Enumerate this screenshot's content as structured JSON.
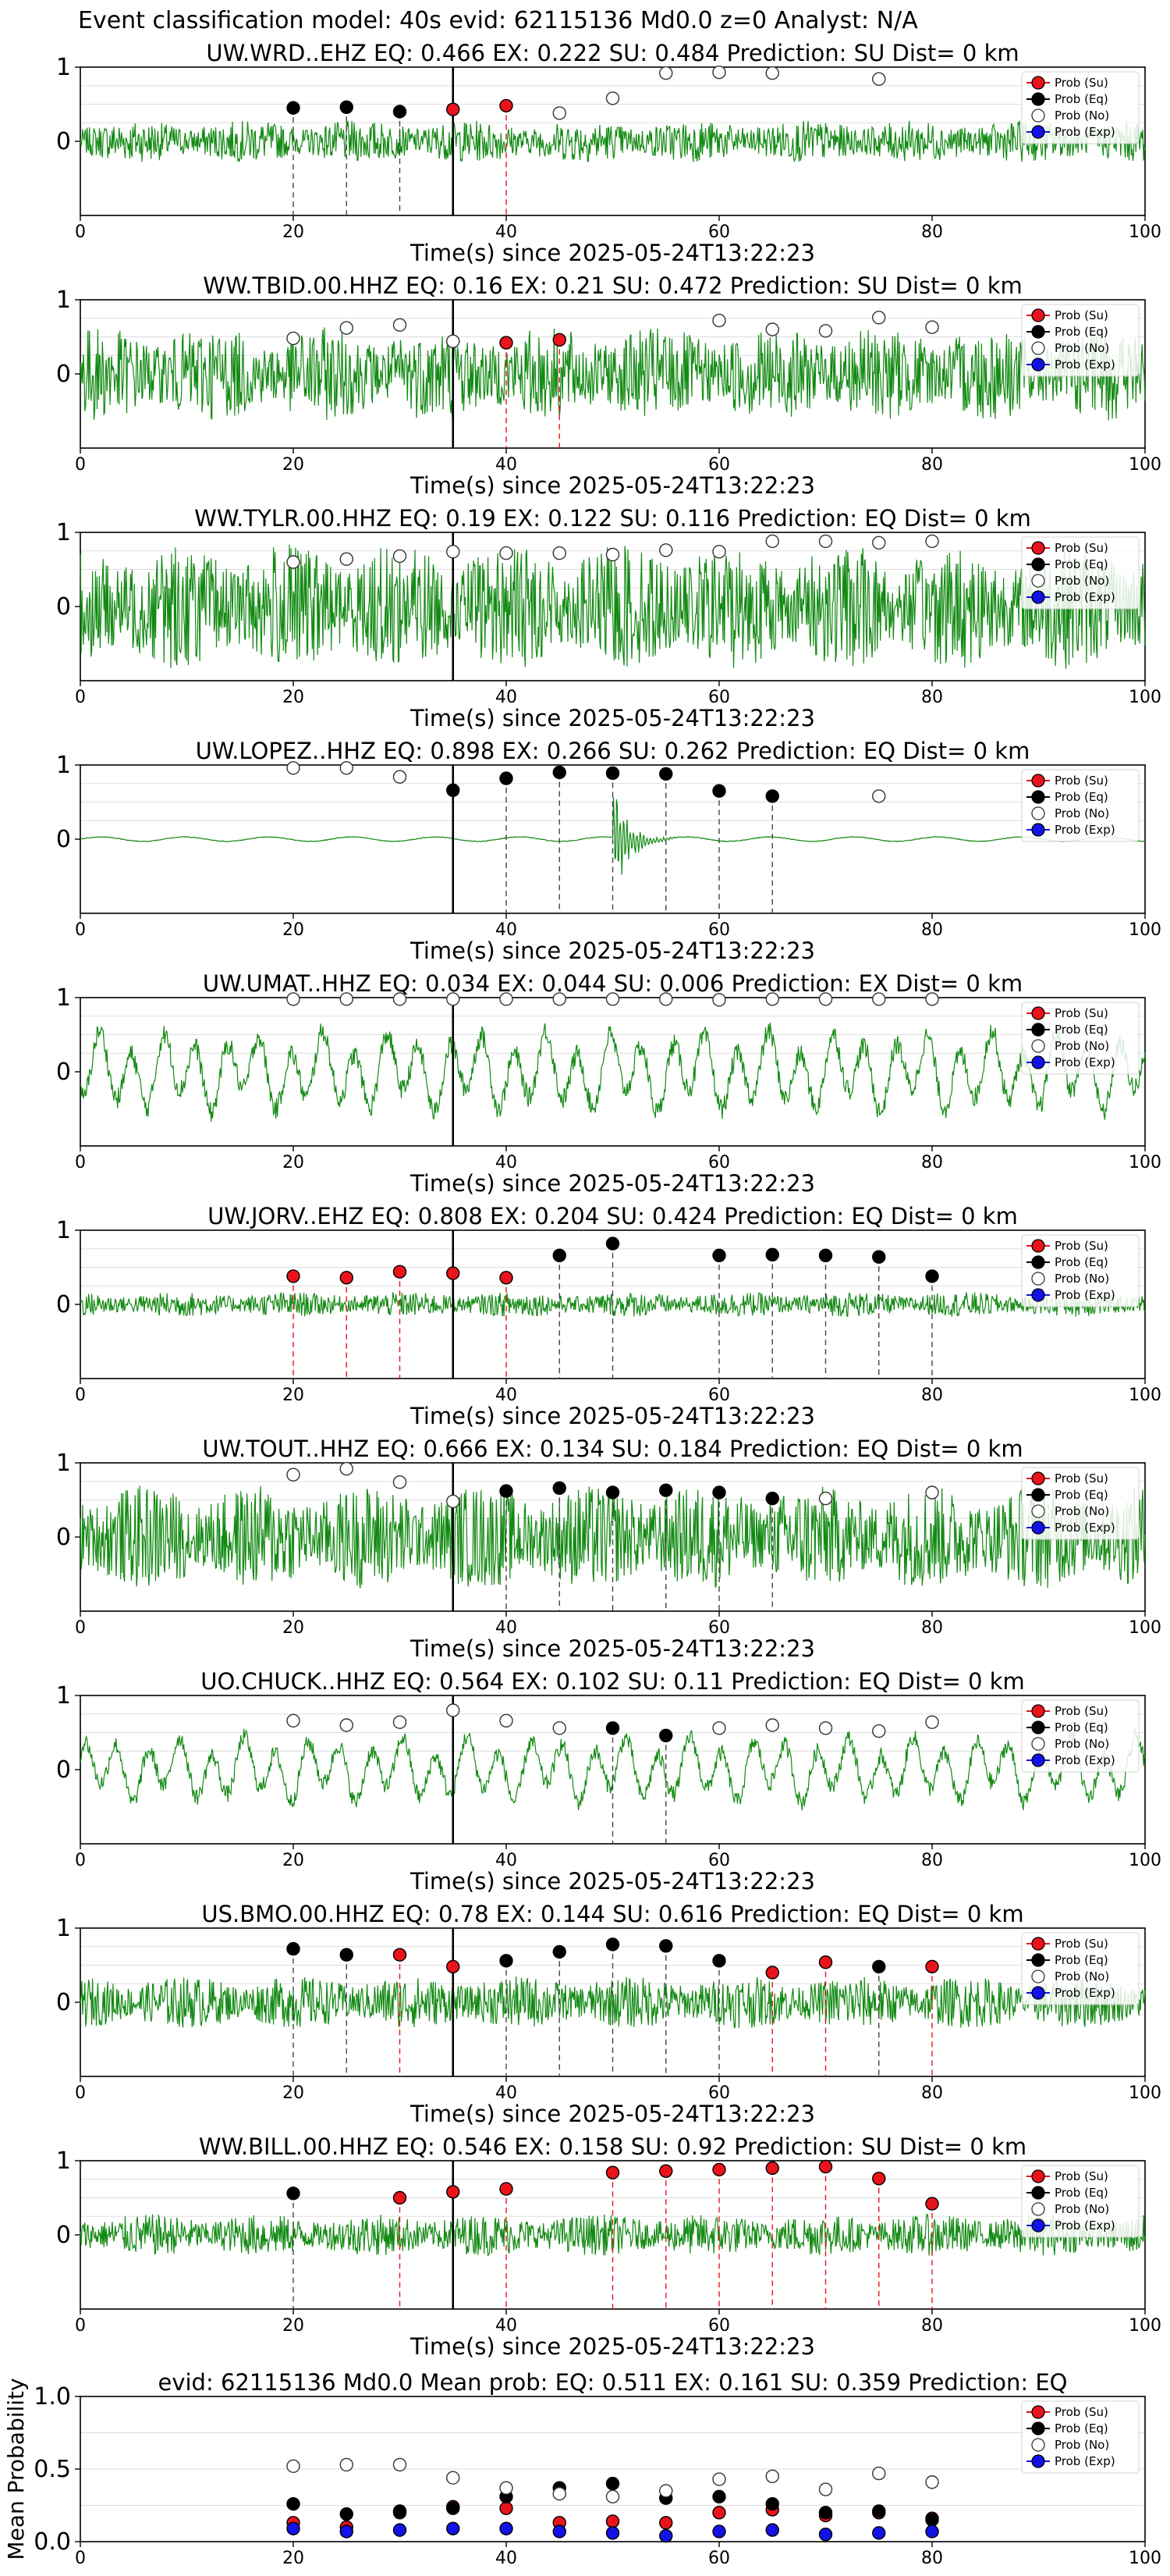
{
  "figure_title": "Event classification model: 40s evid: 62115136 Md0.0 z=0 Analyst: N/A",
  "legend_labels": [
    "Prob (Su)",
    "Prob (Eq)",
    "Prob (No)",
    "Prob (Exp)"
  ],
  "colors": {
    "su": "#e8141a",
    "eq": "#000000",
    "no": "#ffffff",
    "exp": "#1212e6",
    "trace": "#138a13",
    "grid": "#dddddd"
  },
  "chart_data": [
    {
      "type": "line",
      "title": "UW.WRD..EHZ   EQ: 0.466  EX: 0.222  SU: 0.484   Prediction: SU    Dist= 0 km",
      "xlabel": "Time(s) since 2025-05-24T13:22:23",
      "xlim": [
        0,
        100
      ],
      "ylim": [
        -1,
        1
      ],
      "x_ticks": [
        "0",
        "20",
        "40",
        "60",
        "80",
        "100"
      ],
      "y_ticks": [
        "0",
        "1"
      ],
      "trace_amplitude": 0.2,
      "trace_style": "noisy",
      "onset": 35,
      "windows": [
        20,
        25,
        30,
        35,
        40,
        45,
        50,
        55,
        60,
        65,
        75
      ],
      "classes": [
        "eq",
        "eq",
        "eq",
        "su",
        "su",
        "no",
        "no",
        "no",
        "no",
        "no",
        "no"
      ],
      "probs": [
        0.45,
        0.46,
        0.4,
        0.43,
        0.48,
        0.38,
        0.58,
        0.92,
        0.93,
        0.92,
        0.84
      ]
    },
    {
      "type": "line",
      "title": "WW.TBID.00.HHZ   EQ: 0.16  EX: 0.21  SU: 0.472   Prediction: SU    Dist= 0 km",
      "xlabel": "Time(s) since 2025-05-24T13:22:23",
      "xlim": [
        0,
        100
      ],
      "ylim": [
        -1,
        1
      ],
      "x_ticks": [
        "0",
        "20",
        "40",
        "60",
        "80",
        "100"
      ],
      "y_ticks": [
        "0",
        "1"
      ],
      "trace_amplitude": 0.45,
      "trace_style": "noisy",
      "onset": 35,
      "windows": [
        20,
        25,
        30,
        35,
        40,
        45,
        60,
        65,
        70,
        75,
        80
      ],
      "classes": [
        "no",
        "no",
        "no",
        "no",
        "su",
        "su",
        "no",
        "no",
        "no",
        "no",
        "no"
      ],
      "probs": [
        0.48,
        0.62,
        0.66,
        0.44,
        0.42,
        0.46,
        0.72,
        0.6,
        0.58,
        0.76,
        0.63
      ]
    },
    {
      "type": "line",
      "title": "WW.TYLR.00.HHZ   EQ: 0.19  EX: 0.122  SU: 0.116   Prediction: EQ    Dist= 0 km",
      "xlabel": "Time(s) since 2025-05-24T13:22:23",
      "xlim": [
        0,
        100
      ],
      "ylim": [
        -1,
        1
      ],
      "x_ticks": [
        "0",
        "20",
        "40",
        "60",
        "80",
        "100"
      ],
      "y_ticks": [
        "0",
        "1"
      ],
      "trace_amplitude": 0.6,
      "trace_style": "noisy",
      "onset": 35,
      "windows": [
        20,
        25,
        30,
        35,
        40,
        45,
        50,
        55,
        60,
        65,
        70,
        75,
        80
      ],
      "classes": [
        "no",
        "no",
        "no",
        "no",
        "no",
        "no",
        "no",
        "no",
        "no",
        "no",
        "no",
        "no",
        "no"
      ],
      "probs": [
        0.6,
        0.64,
        0.68,
        0.74,
        0.72,
        0.72,
        0.7,
        0.76,
        0.74,
        0.88,
        0.88,
        0.86,
        0.88
      ]
    },
    {
      "type": "line",
      "title": "UW.LOPEZ..HHZ   EQ: 0.898  EX: 0.266  SU: 0.262   Prediction: EQ    Dist= 0 km",
      "xlabel": "Time(s) since 2025-05-24T13:22:23",
      "xlim": [
        0,
        100
      ],
      "ylim": [
        -1,
        1
      ],
      "x_ticks": [
        "0",
        "20",
        "40",
        "60",
        "80",
        "100"
      ],
      "y_ticks": [
        "0",
        "1"
      ],
      "trace_amplitude": 0.03,
      "trace_style": "burst",
      "burst_at": 50,
      "burst_amplitude": 0.6,
      "onset": 35,
      "windows": [
        20,
        25,
        30,
        35,
        40,
        45,
        50,
        55,
        60,
        65,
        75
      ],
      "classes": [
        "no",
        "no",
        "no",
        "eq",
        "eq",
        "eq",
        "eq",
        "eq",
        "eq",
        "eq",
        "no"
      ],
      "probs": [
        0.96,
        0.96,
        0.84,
        0.66,
        0.82,
        0.9,
        0.89,
        0.88,
        0.65,
        0.58,
        0.58
      ]
    },
    {
      "type": "line",
      "title": "UW.UMAT..HHZ   EQ: 0.034  EX: 0.044  SU: 0.006   Prediction: EX    Dist= 0 km",
      "xlabel": "Time(s) since 2025-05-24T13:22:23",
      "xlim": [
        0,
        100
      ],
      "ylim": [
        -1,
        1
      ],
      "x_ticks": [
        "0",
        "20",
        "40",
        "60",
        "80",
        "100"
      ],
      "y_ticks": [
        "0",
        "1"
      ],
      "trace_amplitude": 0.55,
      "trace_style": "wavy",
      "onset": 35,
      "windows": [
        20,
        25,
        30,
        35,
        40,
        45,
        50,
        55,
        60,
        65,
        70,
        75,
        80
      ],
      "classes": [
        "no",
        "no",
        "no",
        "no",
        "no",
        "no",
        "no",
        "no",
        "no",
        "no",
        "no",
        "no",
        "no"
      ],
      "probs": [
        0.98,
        0.98,
        0.98,
        0.98,
        0.98,
        0.98,
        0.98,
        0.98,
        0.97,
        0.98,
        0.98,
        0.98,
        0.98
      ]
    },
    {
      "type": "line",
      "title": "UW.JORV..EHZ   EQ: 0.808  EX: 0.204  SU: 0.424   Prediction: EQ    Dist= 0 km",
      "xlabel": "Time(s) since 2025-05-24T13:22:23",
      "xlim": [
        0,
        100
      ],
      "ylim": [
        -1,
        1
      ],
      "x_ticks": [
        "0",
        "20",
        "40",
        "60",
        "80",
        "100"
      ],
      "y_ticks": [
        "0",
        "1"
      ],
      "trace_amplitude": 0.12,
      "trace_style": "noisy",
      "onset": 35,
      "windows": [
        20,
        25,
        30,
        35,
        40,
        45,
        50,
        60,
        65,
        70,
        75,
        80
      ],
      "classes": [
        "su",
        "su",
        "su",
        "su",
        "su",
        "eq",
        "eq",
        "eq",
        "eq",
        "eq",
        "eq",
        "eq"
      ],
      "probs": [
        0.38,
        0.36,
        0.44,
        0.42,
        0.36,
        0.66,
        0.82,
        0.66,
        0.67,
        0.66,
        0.64,
        0.38
      ]
    },
    {
      "type": "line",
      "title": "UW.TOUT..HHZ   EQ: 0.666  EX: 0.134  SU: 0.184   Prediction: EQ    Dist= 0 km",
      "xlabel": "Time(s) since 2025-05-24T13:22:23",
      "xlim": [
        0,
        100
      ],
      "ylim": [
        -1,
        1
      ],
      "x_ticks": [
        "0",
        "20",
        "40",
        "60",
        "80",
        "100"
      ],
      "y_ticks": [
        "0",
        "1"
      ],
      "trace_amplitude": 0.5,
      "trace_style": "noisy",
      "onset": 35,
      "windows": [
        20,
        25,
        30,
        35,
        40,
        45,
        50,
        55,
        60,
        65,
        70,
        80
      ],
      "classes": [
        "no",
        "no",
        "no",
        "no",
        "eq",
        "eq",
        "eq",
        "eq",
        "eq",
        "eq",
        "no",
        "no"
      ],
      "probs": [
        0.84,
        0.92,
        0.74,
        0.48,
        0.62,
        0.66,
        0.6,
        0.63,
        0.6,
        0.52,
        0.52,
        0.6
      ]
    },
    {
      "type": "line",
      "title": "UO.CHUCK..HHZ   EQ: 0.564  EX: 0.102  SU: 0.11   Prediction: EQ    Dist= 0 km",
      "xlabel": "Time(s) since 2025-05-24T13:22:23",
      "xlim": [
        0,
        100
      ],
      "ylim": [
        -1,
        1
      ],
      "x_ticks": [
        "0",
        "20",
        "40",
        "60",
        "80",
        "100"
      ],
      "y_ticks": [
        "0",
        "1"
      ],
      "trace_amplitude": 0.45,
      "trace_style": "wavy",
      "onset": 35,
      "windows": [
        20,
        25,
        30,
        35,
        40,
        45,
        50,
        55,
        60,
        65,
        70,
        75,
        80
      ],
      "classes": [
        "no",
        "no",
        "no",
        "no",
        "no",
        "no",
        "eq",
        "eq",
        "no",
        "no",
        "no",
        "no",
        "no"
      ],
      "probs": [
        0.66,
        0.6,
        0.64,
        0.8,
        0.66,
        0.56,
        0.56,
        0.46,
        0.56,
        0.6,
        0.56,
        0.52,
        0.64
      ]
    },
    {
      "type": "line",
      "title": "US.BMO.00.HHZ   EQ: 0.78  EX: 0.144  SU: 0.616   Prediction: EQ    Dist= 0 km",
      "xlabel": "Time(s) since 2025-05-24T13:22:23",
      "xlim": [
        0,
        100
      ],
      "ylim": [
        -1,
        1
      ],
      "x_ticks": [
        "0",
        "20",
        "40",
        "60",
        "80",
        "100"
      ],
      "y_ticks": [
        "0",
        "1"
      ],
      "trace_amplitude": 0.25,
      "trace_style": "noisy",
      "onset": 35,
      "windows": [
        20,
        25,
        30,
        35,
        40,
        45,
        50,
        55,
        60,
        65,
        70,
        75,
        80
      ],
      "classes": [
        "eq",
        "eq",
        "su",
        "su",
        "eq",
        "eq",
        "eq",
        "eq",
        "eq",
        "su",
        "su",
        "eq",
        "su"
      ],
      "probs": [
        0.72,
        0.64,
        0.64,
        0.48,
        0.56,
        0.68,
        0.78,
        0.76,
        0.56,
        0.4,
        0.54,
        0.48,
        0.48
      ]
    },
    {
      "type": "line",
      "title": "WW.BILL.00.HHZ   EQ: 0.546  EX: 0.158  SU: 0.92   Prediction: SU    Dist= 0 km",
      "xlabel": "Time(s) since 2025-05-24T13:22:23",
      "xlim": [
        0,
        100
      ],
      "ylim": [
        -1,
        1
      ],
      "x_ticks": [
        "0",
        "20",
        "40",
        "60",
        "80",
        "100"
      ],
      "y_ticks": [
        "0",
        "1"
      ],
      "trace_amplitude": 0.2,
      "trace_style": "noisy",
      "onset": 35,
      "windows": [
        20,
        30,
        35,
        40,
        50,
        55,
        60,
        65,
        70,
        75,
        80
      ],
      "classes": [
        "eq",
        "su",
        "su",
        "su",
        "su",
        "su",
        "su",
        "su",
        "su",
        "su",
        "su"
      ],
      "probs": [
        0.56,
        0.5,
        0.58,
        0.62,
        0.84,
        0.86,
        0.88,
        0.9,
        0.92,
        0.76,
        0.42
      ]
    },
    {
      "type": "scatter",
      "title": "evid: 62115136  Md0.0   Mean prob:   EQ: 0.511  EX: 0.161  SU: 0.359   Prediction: EQ",
      "ylabel": "Mean Probability",
      "xlim": [
        0,
        100
      ],
      "ylim": [
        0,
        1
      ],
      "x_ticks": [
        "0",
        "20",
        "40",
        "60",
        "80",
        "100"
      ],
      "y_ticks": [
        "0.0",
        "0.5",
        "1.0"
      ],
      "x": [
        20,
        25,
        30,
        35,
        40,
        45,
        50,
        55,
        60,
        65,
        70,
        75,
        80
      ],
      "series": [
        {
          "name": "Prob (Su)",
          "key": "su",
          "values": [
            0.13,
            0.1,
            0.2,
            0.24,
            0.23,
            0.13,
            0.14,
            0.13,
            0.2,
            0.22,
            0.18,
            0.2,
            0.16
          ]
        },
        {
          "name": "Prob (Eq)",
          "key": "eq",
          "values": [
            0.26,
            0.19,
            0.21,
            0.23,
            0.31,
            0.37,
            0.4,
            0.3,
            0.31,
            0.26,
            0.2,
            0.21,
            0.15
          ]
        },
        {
          "name": "Prob (No)",
          "key": "no",
          "values": [
            0.52,
            0.53,
            0.53,
            0.44,
            0.37,
            0.33,
            0.31,
            0.35,
            0.43,
            0.45,
            0.36,
            0.47,
            0.41
          ]
        },
        {
          "name": "Prob (Exp)",
          "key": "exp",
          "values": [
            0.09,
            0.07,
            0.08,
            0.09,
            0.09,
            0.07,
            0.06,
            0.04,
            0.07,
            0.08,
            0.05,
            0.06,
            0.07
          ]
        }
      ]
    }
  ]
}
